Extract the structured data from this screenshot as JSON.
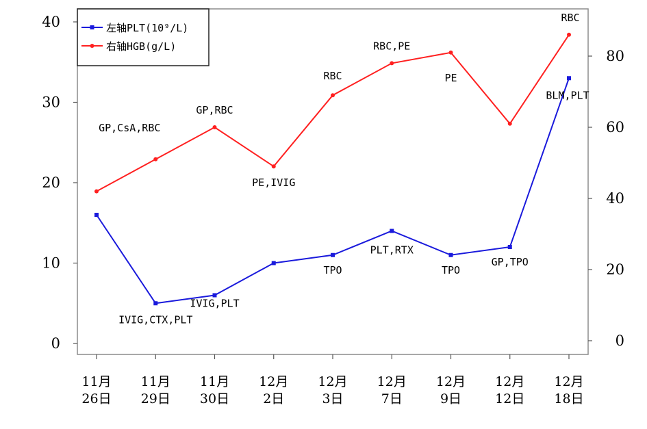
{
  "chart_data": {
    "type": "line",
    "categories": [
      [
        "11月",
        "26日"
      ],
      [
        "11月",
        "29日"
      ],
      [
        "11月",
        "30日"
      ],
      [
        "12月",
        "2日"
      ],
      [
        "12月",
        "3日"
      ],
      [
        "12月",
        "7日"
      ],
      [
        "12月",
        "9日"
      ],
      [
        "12月",
        "12日"
      ],
      [
        "12月",
        "18日"
      ]
    ],
    "series": [
      {
        "name": "左轴PLT(10⁹/L)",
        "axis": "left",
        "color": "#1a1adc",
        "values": [
          16,
          5,
          6,
          10,
          11,
          14,
          11,
          12,
          33
        ],
        "annotations": [
          "",
          "IVIG,CTX,PLT",
          "IVIG,PLT",
          "",
          "TPO",
          "PLT,RTX",
          "TPO",
          "GP,TPO",
          "BLM,PLT"
        ]
      },
      {
        "name": "右轴HGB(g/L)",
        "axis": "right",
        "color": "#ff2020",
        "values": [
          42,
          51,
          60,
          49,
          69,
          78,
          81,
          61,
          86
        ],
        "annotations": [
          "",
          "GP,CsA,RBC",
          "GP,RBC",
          "PE,IVIG",
          "RBC",
          "RBC,PE",
          "PE",
          "",
          "RBC"
        ]
      }
    ],
    "left_axis": {
      "ylim": [
        0,
        40
      ],
      "ticks": [
        0,
        10,
        20,
        30,
        40
      ]
    },
    "right_axis": {
      "ylim": [
        0,
        90
      ],
      "ticks": [
        0,
        20,
        40,
        60,
        80
      ]
    },
    "legend_position": "top-left",
    "grid": false
  }
}
